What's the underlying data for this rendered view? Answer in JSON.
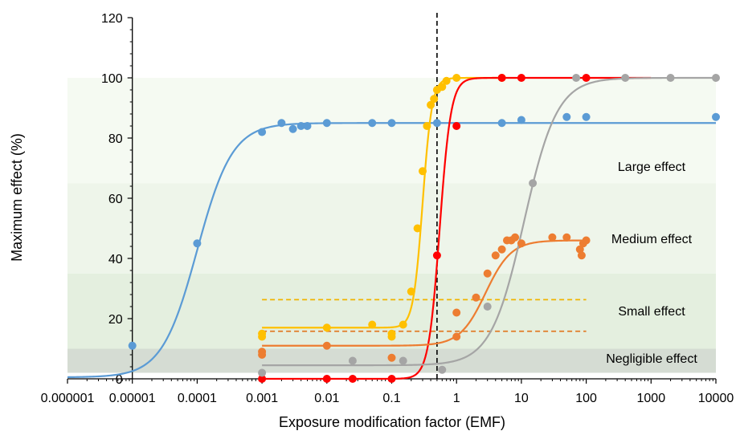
{
  "chart_data": {
    "type": "scatter",
    "title": "",
    "xlabel": "Exposure modification factor (EMF)",
    "ylabel": "Maximum effect (%)",
    "x_scale": "log",
    "xlim": [
      1e-06,
      10000
    ],
    "ylim": [
      0,
      120
    ],
    "x_ticks": [
      1e-06,
      1e-05,
      0.0001,
      0.001,
      0.01,
      0.1,
      1,
      10,
      100,
      1000,
      10000
    ],
    "x_tick_labels": [
      "0.000001",
      "0.00001",
      "0.0001",
      "0.001",
      "0.01",
      "0.1",
      "1",
      "10",
      "100",
      "1000",
      "10000"
    ],
    "y_ticks": [
      0,
      20,
      40,
      60,
      80,
      100,
      120
    ],
    "y_tick_labels": [
      "0",
      "20",
      "40",
      "60",
      "80",
      "100",
      "120"
    ],
    "y_axis_position_x": 1e-05,
    "grid": false,
    "legend": "none",
    "bands": [
      {
        "label": "Negligible effect",
        "from": 2,
        "to": 10,
        "color": "#d5dcd3"
      },
      {
        "label": "Small effect",
        "from": 10,
        "to": 35,
        "color": "#e4efdf"
      },
      {
        "label": "Medium effect",
        "from": 35,
        "to": 65,
        "color": "#eef5ea"
      },
      {
        "label": "Large effect",
        "from": 65,
        "to": 100,
        "color": "#f5faf2"
      }
    ],
    "reference_lines": [
      {
        "orientation": "vertical",
        "x": 0.5,
        "color": "#000000",
        "style": "dashed"
      },
      {
        "orientation": "horizontal",
        "y": 26.3,
        "x_range": [
          0.001,
          100
        ],
        "color": "#f0b400",
        "style": "dashed"
      },
      {
        "orientation": "horizontal",
        "y": 15.8,
        "x_range": [
          0.001,
          100
        ],
        "color": "#e07b25",
        "style": "dashed"
      }
    ],
    "series": [
      {
        "color": "#5b9bd5",
        "points": [
          [
            1e-05,
            11
          ],
          [
            0.0001,
            45
          ],
          [
            0.001,
            82
          ],
          [
            0.002,
            85
          ],
          [
            0.003,
            83
          ],
          [
            0.004,
            84
          ],
          [
            0.005,
            84
          ],
          [
            0.01,
            85
          ],
          [
            0.05,
            85
          ],
          [
            0.1,
            85
          ],
          [
            0.5,
            85
          ],
          [
            5,
            85
          ],
          [
            10,
            86
          ],
          [
            50,
            87
          ],
          [
            100,
            87
          ],
          [
            10000,
            87
          ]
        ],
        "fit": {
          "bottom": 0.5,
          "top": 85,
          "x50": 0.0001,
          "hill": 1.6,
          "x_range": [
            1e-06,
            10000
          ]
        }
      },
      {
        "color": "#ffc000",
        "points": [
          [
            0.001,
            15
          ],
          [
            0.001,
            14
          ],
          [
            0.01,
            17
          ],
          [
            0.05,
            18
          ],
          [
            0.1,
            15
          ],
          [
            0.1,
            14
          ],
          [
            0.15,
            18
          ],
          [
            0.2,
            29
          ],
          [
            0.25,
            50
          ],
          [
            0.3,
            69
          ],
          [
            0.35,
            84
          ],
          [
            0.4,
            91
          ],
          [
            0.45,
            93
          ],
          [
            0.5,
            96
          ],
          [
            0.6,
            97
          ],
          [
            0.7,
            99
          ],
          [
            1,
            100
          ],
          [
            5,
            100
          ]
        ],
        "fit": {
          "bottom": 17,
          "top": 100,
          "x50": 0.3,
          "hill": 6,
          "x_range": [
            0.001,
            5
          ]
        }
      },
      {
        "color": "#ff0000",
        "points": [
          [
            0.001,
            0
          ],
          [
            0.01,
            0
          ],
          [
            0.025,
            0
          ],
          [
            0.1,
            0
          ],
          [
            0.5,
            41
          ],
          [
            1,
            84
          ],
          [
            5,
            100
          ],
          [
            10,
            100
          ],
          [
            100,
            100
          ]
        ],
        "fit": {
          "bottom": 0,
          "top": 100,
          "x50": 0.55,
          "hill": 5,
          "x_range": [
            0.001,
            1000
          ]
        }
      },
      {
        "color": "#ed7d31",
        "points": [
          [
            0.001,
            9
          ],
          [
            0.001,
            8
          ],
          [
            0.01,
            11
          ],
          [
            0.1,
            7
          ],
          [
            1,
            14
          ],
          [
            1,
            22
          ],
          [
            2,
            27
          ],
          [
            3,
            35
          ],
          [
            4,
            41
          ],
          [
            5,
            43
          ],
          [
            6,
            46
          ],
          [
            7,
            46
          ],
          [
            8,
            47
          ],
          [
            10,
            45
          ],
          [
            30,
            47
          ],
          [
            50,
            47
          ],
          [
            80,
            43
          ],
          [
            85,
            41
          ],
          [
            90,
            45
          ],
          [
            100,
            46
          ]
        ],
        "fit": {
          "bottom": 11,
          "top": 46,
          "x50": 2.8,
          "hill": 2.2,
          "x_range": [
            0.001,
            100
          ]
        }
      },
      {
        "color": "#a5a5a5",
        "points": [
          [
            0.001,
            2
          ],
          [
            0.025,
            6
          ],
          [
            0.15,
            6
          ],
          [
            0.6,
            3
          ],
          [
            3,
            24
          ],
          [
            15,
            65
          ],
          [
            70,
            100
          ],
          [
            400,
            100
          ],
          [
            2000,
            100
          ],
          [
            10000,
            100
          ]
        ],
        "fit": {
          "bottom": 4.5,
          "top": 100,
          "x50": 11,
          "hill": 1.7,
          "x_range": [
            0.001,
            10000
          ]
        }
      }
    ]
  }
}
